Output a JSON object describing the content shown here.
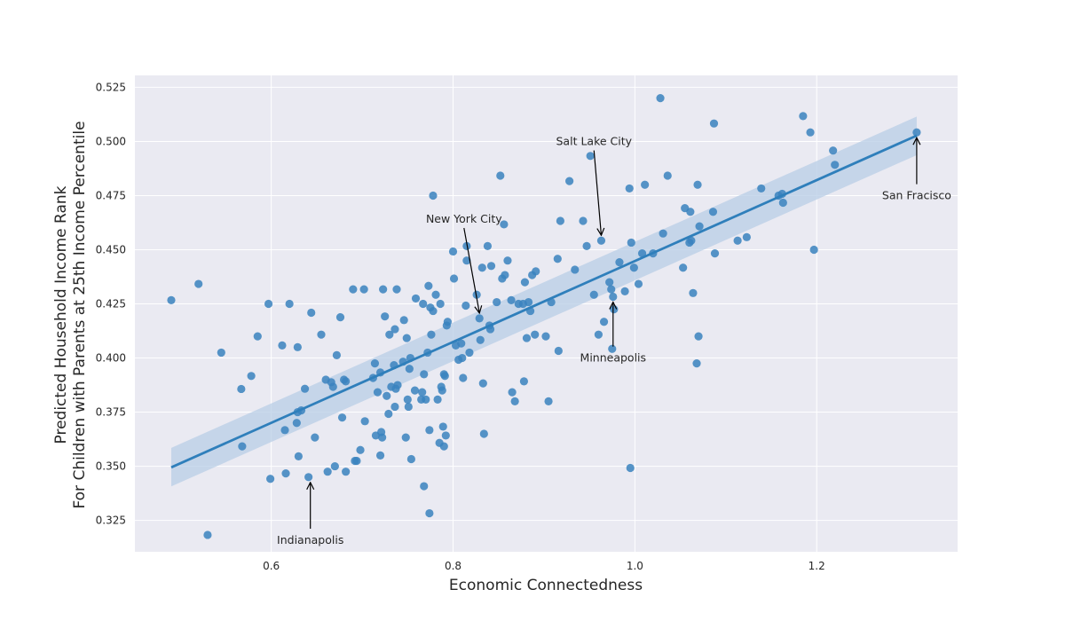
{
  "chart_data": {
    "type": "scatter",
    "title": "",
    "xlabel": "Economic Connectedness",
    "ylabel_lines": [
      "Predicted Household Income Rank",
      "For Children with Parents at 25th Income Percentile"
    ],
    "xlim": [
      0.45,
      1.355
    ],
    "ylim": [
      0.3105,
      0.5305
    ],
    "xticks": [
      0.6,
      0.8,
      1.0,
      1.2
    ],
    "xtick_labels": [
      "0.6",
      "0.8",
      "1.0",
      "1.2"
    ],
    "yticks": [
      0.325,
      0.35,
      0.375,
      0.4,
      0.425,
      0.45,
      0.475,
      0.5,
      0.525
    ],
    "ytick_labels": [
      "0.325",
      "0.350",
      "0.375",
      "0.400",
      "0.425",
      "0.450",
      "0.475",
      "0.500",
      "0.525"
    ],
    "grid": true,
    "colors": {
      "point": "#3a82be",
      "line": "#2f7fbb",
      "band": "#b8cde6",
      "plot_bg": "#eaeaf2",
      "grid": "#ffffff"
    },
    "regression": {
      "x": [
        0.49,
        1.31
      ],
      "y": [
        0.3495,
        0.5027
      ],
      "ci_upper_start": 0.3585,
      "ci_lower_start": 0.3407,
      "ci_upper_end": 0.5115,
      "ci_lower_end": 0.4937
    },
    "points": [
      [
        0.49,
        0.4267
      ],
      [
        0.52,
        0.4342
      ],
      [
        0.53,
        0.3183
      ],
      [
        0.545,
        0.4025
      ],
      [
        0.567,
        0.3857
      ],
      [
        0.568,
        0.3592
      ],
      [
        0.578,
        0.3917
      ],
      [
        0.585,
        0.41
      ],
      [
        0.597,
        0.425
      ],
      [
        0.599,
        0.3442
      ],
      [
        0.612,
        0.4058
      ],
      [
        0.615,
        0.3667
      ],
      [
        0.616,
        0.3467
      ],
      [
        0.62,
        0.425
      ],
      [
        0.628,
        0.37
      ],
      [
        0.629,
        0.405
      ],
      [
        0.629,
        0.375
      ],
      [
        0.63,
        0.3546
      ],
      [
        0.633,
        0.3758
      ],
      [
        0.637,
        0.3858
      ],
      [
        0.641,
        0.345
      ],
      [
        0.644,
        0.4209
      ],
      [
        0.648,
        0.3633
      ],
      [
        0.655,
        0.4108
      ],
      [
        0.66,
        0.39
      ],
      [
        0.662,
        0.3475
      ],
      [
        0.666,
        0.3888
      ],
      [
        0.668,
        0.3867
      ],
      [
        0.67,
        0.35
      ],
      [
        0.672,
        0.4013
      ],
      [
        0.676,
        0.4188
      ],
      [
        0.678,
        0.3725
      ],
      [
        0.68,
        0.39
      ],
      [
        0.682,
        0.3892
      ],
      [
        0.682,
        0.3475
      ],
      [
        0.69,
        0.4317
      ],
      [
        0.692,
        0.3525
      ],
      [
        0.694,
        0.3525
      ],
      [
        0.698,
        0.3575
      ],
      [
        0.702,
        0.4317
      ],
      [
        0.703,
        0.3708
      ],
      [
        0.712,
        0.3908
      ],
      [
        0.714,
        0.3975
      ],
      [
        0.715,
        0.3642
      ],
      [
        0.717,
        0.3842
      ],
      [
        0.72,
        0.3933
      ],
      [
        0.72,
        0.355
      ],
      [
        0.721,
        0.3658
      ],
      [
        0.722,
        0.3633
      ],
      [
        0.723,
        0.4317
      ],
      [
        0.725,
        0.4192
      ],
      [
        0.727,
        0.3825
      ],
      [
        0.729,
        0.3742
      ],
      [
        0.73,
        0.4108
      ],
      [
        0.732,
        0.3867
      ],
      [
        0.735,
        0.3967
      ],
      [
        0.736,
        0.3775
      ],
      [
        0.736,
        0.4133
      ],
      [
        0.737,
        0.3858
      ],
      [
        0.738,
        0.4317
      ],
      [
        0.739,
        0.3875
      ],
      [
        0.745,
        0.3983
      ],
      [
        0.746,
        0.4175
      ],
      [
        0.748,
        0.3633
      ],
      [
        0.749,
        0.4092
      ],
      [
        0.75,
        0.3808
      ],
      [
        0.751,
        0.3775
      ],
      [
        0.752,
        0.395
      ],
      [
        0.753,
        0.4
      ],
      [
        0.754,
        0.3533
      ],
      [
        0.758,
        0.385
      ],
      [
        0.759,
        0.4275
      ],
      [
        0.765,
        0.3808
      ],
      [
        0.766,
        0.3842
      ],
      [
        0.767,
        0.425
      ],
      [
        0.768,
        0.3925
      ],
      [
        0.768,
        0.3408
      ],
      [
        0.77,
        0.3808
      ],
      [
        0.772,
        0.4025
      ],
      [
        0.773,
        0.4333
      ],
      [
        0.774,
        0.3667
      ],
      [
        0.774,
        0.3283
      ],
      [
        0.775,
        0.4233
      ],
      [
        0.776,
        0.4108
      ],
      [
        0.778,
        0.475
      ],
      [
        0.778,
        0.4217
      ],
      [
        0.781,
        0.4292
      ],
      [
        0.783,
        0.3808
      ],
      [
        0.785,
        0.3608
      ],
      [
        0.786,
        0.425
      ],
      [
        0.787,
        0.3867
      ],
      [
        0.788,
        0.385
      ],
      [
        0.789,
        0.3683
      ],
      [
        0.79,
        0.3925
      ],
      [
        0.79,
        0.3592
      ],
      [
        0.791,
        0.3917
      ],
      [
        0.792,
        0.3642
      ],
      [
        0.793,
        0.415
      ],
      [
        0.794,
        0.4167
      ],
      [
        0.8,
        0.4492
      ],
      [
        0.801,
        0.4367
      ],
      [
        0.803,
        0.4058
      ],
      [
        0.806,
        0.3992
      ],
      [
        0.809,
        0.4067
      ],
      [
        0.81,
        0.4
      ],
      [
        0.811,
        0.3908
      ],
      [
        0.814,
        0.4242
      ],
      [
        0.815,
        0.4517
      ],
      [
        0.815,
        0.445
      ],
      [
        0.818,
        0.4025
      ],
      [
        0.826,
        0.4292
      ],
      [
        0.829,
        0.4183
      ],
      [
        0.83,
        0.4083
      ],
      [
        0.832,
        0.4417
      ],
      [
        0.833,
        0.3883
      ],
      [
        0.834,
        0.365
      ],
      [
        0.838,
        0.4517
      ],
      [
        0.84,
        0.415
      ],
      [
        0.841,
        0.4133
      ],
      [
        0.842,
        0.4425
      ],
      [
        0.848,
        0.4258
      ],
      [
        0.852,
        0.4842
      ],
      [
        0.854,
        0.4367
      ],
      [
        0.856,
        0.4617
      ],
      [
        0.857,
        0.4383
      ],
      [
        0.86,
        0.445
      ],
      [
        0.864,
        0.4267
      ],
      [
        0.865,
        0.3842
      ],
      [
        0.868,
        0.38
      ],
      [
        0.872,
        0.425
      ],
      [
        0.877,
        0.425
      ],
      [
        0.878,
        0.3892
      ],
      [
        0.879,
        0.435
      ],
      [
        0.881,
        0.4092
      ],
      [
        0.883,
        0.4258
      ],
      [
        0.885,
        0.4217
      ],
      [
        0.887,
        0.4383
      ],
      [
        0.89,
        0.4108
      ],
      [
        0.891,
        0.44
      ],
      [
        0.902,
        0.41
      ],
      [
        0.905,
        0.38
      ],
      [
        0.908,
        0.4258
      ],
      [
        0.915,
        0.4458
      ],
      [
        0.916,
        0.4033
      ],
      [
        0.918,
        0.4633
      ],
      [
        0.928,
        0.4817
      ],
      [
        0.934,
        0.4408
      ],
      [
        0.943,
        0.4633
      ],
      [
        0.947,
        0.4517
      ],
      [
        0.951,
        0.4933
      ],
      [
        0.955,
        0.4292
      ],
      [
        0.96,
        0.4108
      ],
      [
        0.963,
        0.4542
      ],
      [
        0.966,
        0.4167
      ],
      [
        0.972,
        0.435
      ],
      [
        0.974,
        0.4317
      ],
      [
        0.975,
        0.4042
      ],
      [
        0.976,
        0.4283
      ],
      [
        0.977,
        0.4225
      ],
      [
        0.983,
        0.4442
      ],
      [
        0.989,
        0.4308
      ],
      [
        0.994,
        0.4783
      ],
      [
        0.995,
        0.3492
      ],
      [
        0.996,
        0.4533
      ],
      [
        0.999,
        0.4417
      ],
      [
        1.004,
        0.4342
      ],
      [
        1.008,
        0.4483
      ],
      [
        1.011,
        0.48
      ],
      [
        1.02,
        0.4483
      ],
      [
        1.028,
        0.52
      ],
      [
        1.031,
        0.4575
      ],
      [
        1.036,
        0.4842
      ],
      [
        1.053,
        0.4417
      ],
      [
        1.055,
        0.4692
      ],
      [
        1.06,
        0.4533
      ],
      [
        1.061,
        0.4675
      ],
      [
        1.062,
        0.4542
      ],
      [
        1.064,
        0.43
      ],
      [
        1.068,
        0.3975
      ],
      [
        1.069,
        0.48
      ],
      [
        1.07,
        0.41
      ],
      [
        1.071,
        0.4608
      ],
      [
        1.086,
        0.4675
      ],
      [
        1.087,
        0.5083
      ],
      [
        1.088,
        0.4483
      ],
      [
        1.113,
        0.4542
      ],
      [
        1.123,
        0.4558
      ],
      [
        1.139,
        0.4783
      ],
      [
        1.158,
        0.475
      ],
      [
        1.162,
        0.4758
      ],
      [
        1.163,
        0.4717
      ],
      [
        1.185,
        0.5117
      ],
      [
        1.193,
        0.5042
      ],
      [
        1.197,
        0.45
      ],
      [
        1.218,
        0.4958
      ],
      [
        1.22,
        0.4892
      ],
      [
        1.31,
        0.5042
      ]
    ],
    "annotations": [
      {
        "label": "Salt Lake City",
        "point": [
          0.963,
          0.4542
        ],
        "text_at": [
          0.955,
          0.4983
        ],
        "anchor": "middle"
      },
      {
        "label": "New York City",
        "point": [
          0.829,
          0.4183
        ],
        "text_at": [
          0.812,
          0.4625
        ],
        "anchor": "middle"
      },
      {
        "label": "San Fracisco",
        "point": [
          1.31,
          0.5042
        ],
        "text_at": [
          1.31,
          0.4733
        ],
        "anchor": "middle"
      },
      {
        "label": "Minneapolis",
        "point": [
          0.976,
          0.4283
        ],
        "text_at": [
          0.976,
          0.3983
        ],
        "anchor": "middle"
      },
      {
        "label": "Indianapolis",
        "point": [
          0.643,
          0.345
        ],
        "text_at": [
          0.643,
          0.3142
        ],
        "anchor": "middle"
      }
    ]
  }
}
